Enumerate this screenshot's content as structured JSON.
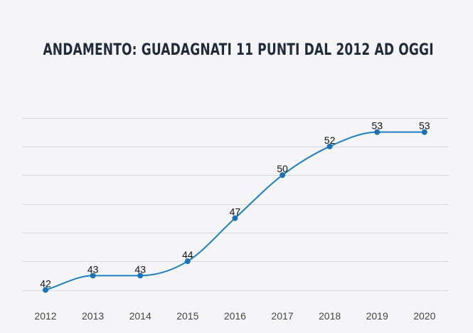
{
  "header": {
    "title": "ANDAMENTO: GUADAGNATI 11 PUNTI DAL 2012 AD OGGI"
  },
  "colors": {
    "line": "#1f7fc4",
    "point": "#1a73b8",
    "title": "#1f2a3a"
  },
  "chart_data": {
    "type": "line",
    "title": "ANDAMENTO: GUADAGNATI 11 PUNTI DAL 2012 AD OGGI",
    "categories": [
      "2012",
      "2013",
      "2014",
      "2015",
      "2016",
      "2017",
      "2018",
      "2019",
      "2020"
    ],
    "series": [
      {
        "values": [
          42,
          43,
          43,
          44,
          47,
          50,
          52,
          53,
          53
        ]
      }
    ],
    "ylim": [
      42,
      54
    ],
    "grid": true,
    "smooth": true,
    "data_labels": true
  }
}
